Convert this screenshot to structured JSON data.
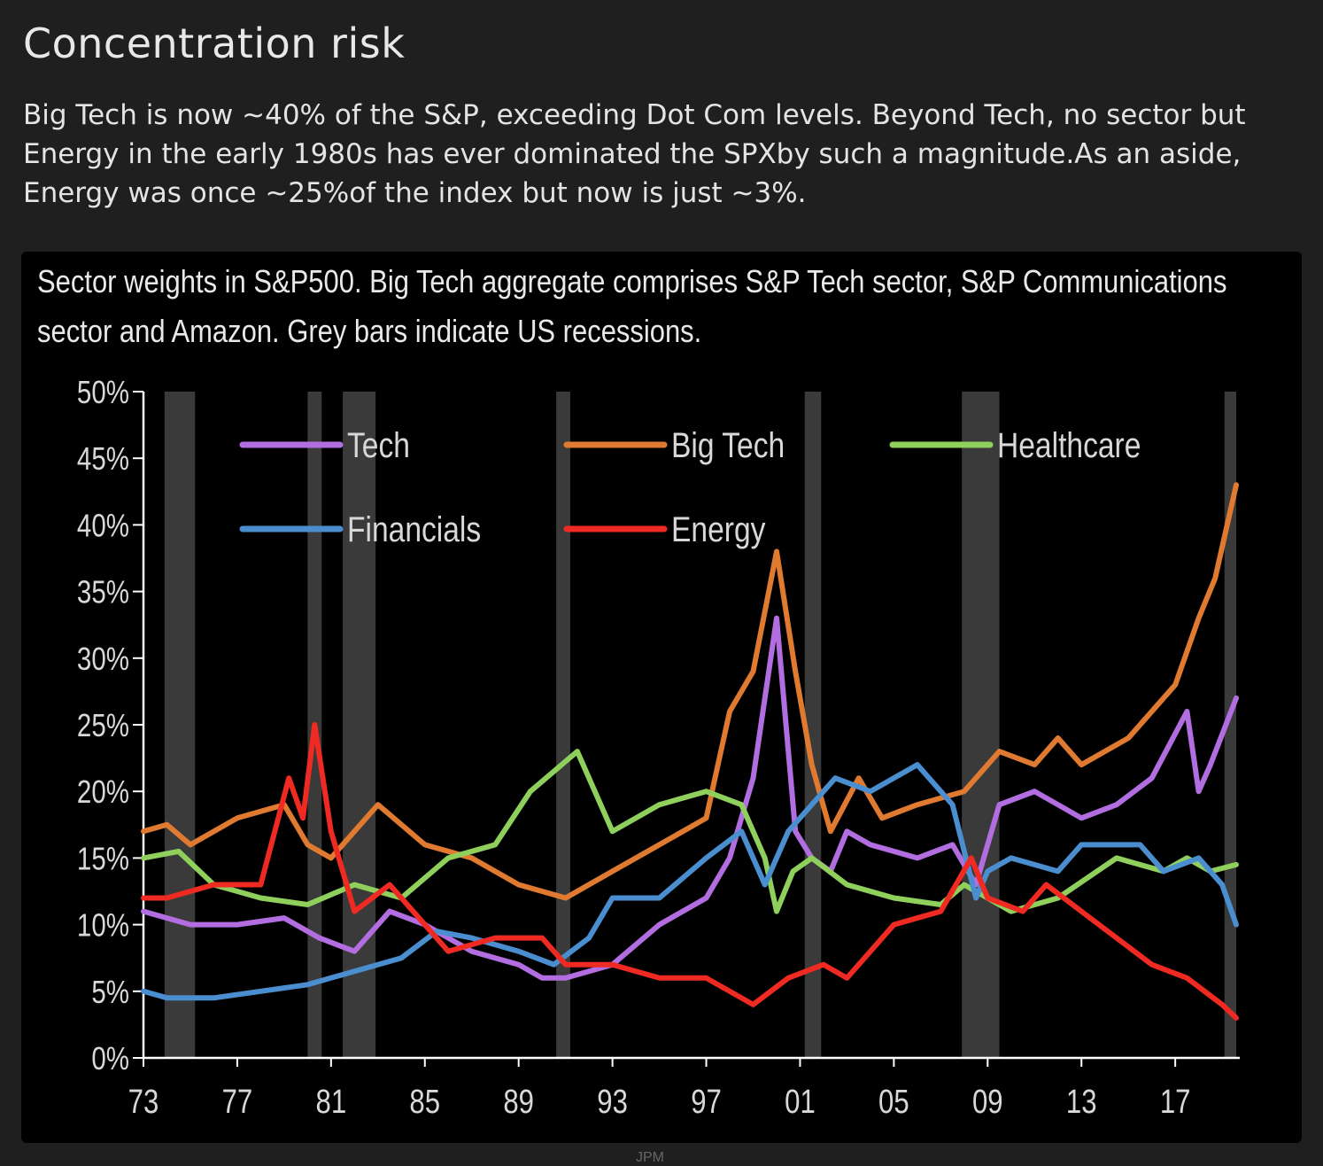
{
  "title": "Concentration risk",
  "subtitle": "Big Tech is now ~40% of the S&P, exceeding Dot Com levels. Beyond Tech, no sector but Energy in the early 1980s has ever dominated the SPXby such a magnitude.As an aside, Energy was once ~25%of the index but now is just ~3%.",
  "chart_caption": "Sector weights in S&P500. Big Tech aggregate comprises S&P Tech sector, S&P Communications sector and Amazon.  Grey bars indicate US recessions.",
  "source": "JPM",
  "chart_data": {
    "type": "line",
    "title": "Sector weights in S&P500. Big Tech aggregate comprises S&P Tech sector, S&P Communications sector and Amazon.  Grey bars indicate US recessions.",
    "xlabel": "",
    "ylabel": "",
    "xlim": [
      1973,
      2019.6
    ],
    "ylim": [
      0,
      50
    ],
    "x_ticks": [
      1973,
      1977,
      1981,
      1985,
      1989,
      1993,
      1997,
      2001,
      2005,
      2009,
      2013,
      2017
    ],
    "x_tick_labels": [
      "73",
      "77",
      "81",
      "85",
      "89",
      "93",
      "97",
      "01",
      "05",
      "09",
      "13",
      "17"
    ],
    "y_ticks": [
      0,
      5,
      10,
      15,
      20,
      25,
      30,
      35,
      40,
      45,
      50
    ],
    "y_tick_labels": [
      "0%",
      "5%",
      "10%",
      "15%",
      "20%",
      "25%",
      "30%",
      "35%",
      "40%",
      "45%",
      "50%"
    ],
    "recessions": [
      [
        1973.9,
        1975.2
      ],
      [
        1980.0,
        1980.6
      ],
      [
        1981.5,
        1982.9
      ],
      [
        1990.6,
        1991.2
      ],
      [
        2001.2,
        2001.9
      ],
      [
        2007.9,
        2009.5
      ],
      [
        2019.1,
        2019.6
      ]
    ],
    "legend": "top, inside plot, 3 columns",
    "grid": false,
    "series": [
      {
        "name": "Tech",
        "color": "#b26ee0",
        "x": [
          1973,
          1975,
          1977,
          1979,
          1980.5,
          1982,
          1983.5,
          1985,
          1987,
          1989,
          1990,
          1991,
          1993,
          1995,
          1997,
          1998,
          1999,
          2000.0,
          2000.8,
          2001.5,
          2002.3,
          2003,
          2004,
          2006,
          2007.5,
          2008.5,
          2009.5,
          2011,
          2012,
          2013,
          2014.5,
          2016,
          2017.5,
          2018,
          2018.5,
          2019.6
        ],
        "values": [
          11,
          10,
          10,
          10.5,
          9,
          8,
          11,
          10,
          8,
          7,
          6,
          6,
          7,
          10,
          12,
          15,
          21,
          33,
          17,
          15,
          14,
          17,
          16,
          15,
          16,
          13,
          19,
          20,
          19,
          18,
          19,
          21,
          26,
          20,
          22,
          27
        ]
      },
      {
        "name": "Big Tech",
        "color": "#e07a30",
        "x": [
          1973,
          1974,
          1975,
          1977,
          1979,
          1980,
          1981,
          1983,
          1985,
          1987,
          1989,
          1991,
          1993,
          1995,
          1997,
          1998,
          1999,
          2000.0,
          2000.8,
          2001.5,
          2002.3,
          2003.5,
          2004.5,
          2006,
          2008,
          2009.5,
          2011,
          2012,
          2013,
          2015,
          2017,
          2018,
          2018.7,
          2019.6
        ],
        "values": [
          17,
          17.5,
          16,
          18,
          19,
          16,
          15,
          19,
          16,
          15,
          13,
          12,
          14,
          16,
          18,
          26,
          29,
          38,
          29,
          22,
          17,
          21,
          18,
          19,
          20,
          23,
          22,
          24,
          22,
          24,
          28,
          33,
          36,
          43
        ]
      },
      {
        "name": "Healthcare",
        "color": "#8fd05c",
        "x": [
          1973,
          1974.5,
          1976,
          1978,
          1980,
          1982,
          1984,
          1986,
          1988,
          1989.5,
          1991.5,
          1993,
          1995,
          1997,
          1998.5,
          1999.5,
          2000,
          2000.7,
          2001.5,
          2003,
          2005,
          2007,
          2008,
          2010,
          2012,
          2014.5,
          2016.5,
          2017.5,
          2018.5,
          2019.6
        ],
        "values": [
          15,
          15.5,
          13,
          12,
          11.5,
          13,
          12,
          15,
          16,
          20,
          23,
          17,
          19,
          20,
          19,
          15,
          11,
          14,
          15,
          13,
          12,
          11.5,
          13,
          11,
          12,
          15,
          14,
          15,
          14,
          14.5
        ]
      },
      {
        "name": "Financials",
        "color": "#4a8ed0",
        "x": [
          1973,
          1974,
          1976,
          1978,
          1980,
          1982,
          1984,
          1985.5,
          1987,
          1989,
          1990.5,
          1992,
          1993,
          1995,
          1997,
          1998.5,
          1999.5,
          2000.5,
          2001.5,
          2002.5,
          2004,
          2006,
          2007.5,
          2008.5,
          2009,
          2010,
          2012,
          2013,
          2015.5,
          2016.5,
          2018,
          2019,
          2019.6
        ],
        "values": [
          5,
          4.5,
          4.5,
          5,
          5.5,
          6.5,
          7.5,
          9.5,
          9,
          8,
          7,
          9,
          12,
          12,
          15,
          17,
          13,
          17,
          19,
          21,
          20,
          22,
          19,
          12,
          14,
          15,
          14,
          16,
          16,
          14,
          15,
          13,
          10
        ]
      },
      {
        "name": "Energy",
        "color": "#ee2a22",
        "x": [
          1973,
          1974,
          1976,
          1978,
          1979.2,
          1979.8,
          1980.3,
          1981,
          1982,
          1983.5,
          1985,
          1986,
          1988,
          1990,
          1991,
          1993,
          1995,
          1997,
          1999,
          2000.5,
          2002,
          2003,
          2005,
          2007,
          2008.3,
          2009,
          2010.5,
          2011.5,
          2013,
          2014.5,
          2016,
          2017.5,
          2019.0,
          2019.6
        ],
        "values": [
          12,
          12,
          13,
          13,
          21,
          18,
          25,
          17,
          11,
          13,
          10,
          8,
          9,
          9,
          7,
          7,
          6,
          6,
          4,
          6,
          7,
          6,
          10,
          11,
          15,
          12,
          11,
          13,
          11,
          9,
          7,
          6,
          4,
          3
        ]
      }
    ]
  }
}
